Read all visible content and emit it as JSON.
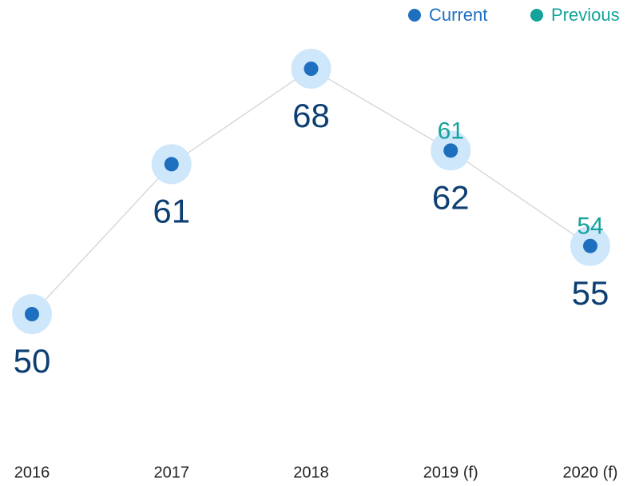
{
  "chart_data": {
    "type": "line",
    "categories": [
      "2016",
      "2017",
      "2018",
      "2019 (f)",
      "2020 (f)"
    ],
    "series": [
      {
        "name": "Current",
        "color": "#1f6fbf",
        "values": [
          50,
          61,
          68,
          62,
          55
        ]
      },
      {
        "name": "Previous",
        "color": "#14a39a",
        "values": [
          null,
          null,
          null,
          61,
          54
        ]
      }
    ],
    "legend": "top-right"
  }
}
